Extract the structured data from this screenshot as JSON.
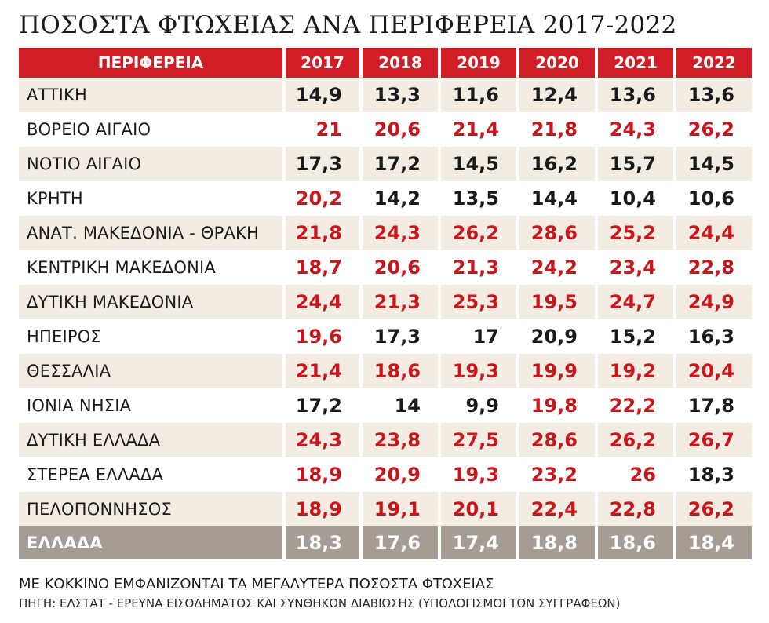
{
  "title": "ΠΟΣΟΣΤΑ ΦΤΩΧΕΙΑΣ ΑΝΑ ΠΕΡΙΦΕΡΕΙΑ 2017-2022",
  "colors": {
    "header_bg": "#d11e26",
    "highlight_red": "#c8161d",
    "normal_text": "#1a1a1a",
    "odd_row_bg": "#f3ece3",
    "total_row_bg": "#a59c94"
  },
  "chart_data": {
    "type": "table",
    "title": "ΠΟΣΟΣΤΑ ΦΤΩΧΕΙΑΣ ΑΝΑ ΠΕΡΙΦΕΡΕΙΑ 2017-2022",
    "columns": [
      "ΠΕΡΙΦΕΡΕΙΑ",
      "2017",
      "2018",
      "2019",
      "2020",
      "2021",
      "2022"
    ],
    "rows": [
      {
        "region": "ΑΤΤΙΚΗ",
        "values": [
          "14,9",
          "13,3",
          "11,6",
          "12,4",
          "13,6",
          "13,6"
        ],
        "red": [
          false,
          false,
          false,
          false,
          false,
          false
        ]
      },
      {
        "region": "ΒΟΡΕΙΟ ΑΙΓΑΙΟ",
        "values": [
          "21",
          "20,6",
          "21,4",
          "21,8",
          "24,3",
          "26,2"
        ],
        "red": [
          true,
          true,
          true,
          true,
          true,
          true
        ]
      },
      {
        "region": "ΝΟΤΙΟ ΑΙΓΑΙΟ",
        "values": [
          "17,3",
          "17,2",
          "14,5",
          "16,2",
          "15,7",
          "14,5"
        ],
        "red": [
          false,
          false,
          false,
          false,
          false,
          false
        ]
      },
      {
        "region": "ΚΡΗΤΗ",
        "values": [
          "20,2",
          "14,2",
          "13,5",
          "14,4",
          "10,4",
          "10,6"
        ],
        "red": [
          true,
          false,
          false,
          false,
          false,
          false
        ]
      },
      {
        "region": "ΑΝΑΤ. ΜΑΚΕΔΟΝΙΑ - ΘΡΑΚΗ",
        "values": [
          "21,8",
          "24,3",
          "26,2",
          "28,6",
          "25,2",
          "24,4"
        ],
        "red": [
          true,
          true,
          true,
          true,
          true,
          true
        ]
      },
      {
        "region": "ΚΕΝΤΡΙΚΗ ΜΑΚΕΔΟΝΙΑ",
        "values": [
          "18,7",
          "20,6",
          "21,3",
          "24,2",
          "23,4",
          "22,8"
        ],
        "red": [
          true,
          true,
          true,
          true,
          true,
          true
        ]
      },
      {
        "region": "ΔΥΤΙΚΗ ΜΑΚΕΔΟΝΙΑ",
        "values": [
          "24,4",
          "21,3",
          "25,3",
          "19,5",
          "24,7",
          "24,9"
        ],
        "red": [
          true,
          true,
          true,
          true,
          true,
          true
        ]
      },
      {
        "region": "ΗΠΕΙΡΟΣ",
        "values": [
          "19,6",
          "17,3",
          "17",
          "20,9",
          "15,2",
          "16,3"
        ],
        "red": [
          true,
          false,
          false,
          false,
          false,
          false
        ]
      },
      {
        "region": "ΘΕΣΣΑΛΙΑ",
        "values": [
          "21,4",
          "18,6",
          "19,3",
          "19,9",
          "19,2",
          "20,4"
        ],
        "red": [
          true,
          true,
          true,
          true,
          true,
          true
        ]
      },
      {
        "region": "ΙΟΝΙΑ ΝΗΣΙΑ",
        "values": [
          "17,2",
          "14",
          "9,9",
          "19,8",
          "22,2",
          "17,8"
        ],
        "red": [
          false,
          false,
          false,
          true,
          true,
          false
        ]
      },
      {
        "region": "ΔΥΤΙΚΗ ΕΛΛΑΔΑ",
        "values": [
          "24,3",
          "23,8",
          "27,5",
          "28,6",
          "26,2",
          "26,7"
        ],
        "red": [
          true,
          true,
          true,
          true,
          true,
          true
        ]
      },
      {
        "region": "ΣΤΕΡΕΑ ΕΛΛΑΔΑ",
        "values": [
          "18,9",
          "20,9",
          "19,3",
          "23,2",
          "26",
          "18,3"
        ],
        "red": [
          true,
          true,
          true,
          true,
          true,
          false
        ]
      },
      {
        "region": "ΠΕΛΟΠΟΝΝΗΣΟΣ",
        "values": [
          "18,9",
          "19,1",
          "20,1",
          "22,4",
          "22,8",
          "26,2"
        ],
        "red": [
          true,
          true,
          true,
          true,
          true,
          true
        ]
      }
    ],
    "total": {
      "region": "ΕΛΛΑΔΑ",
      "values": [
        "18,3",
        "17,6",
        "17,4",
        "18,8",
        "18,6",
        "18,4"
      ]
    }
  },
  "legend_note": "ΜΕ ΚΟΚΚΙΝΟ ΕΜΦΑΝΙΖΟΝΤΑΙ ΤΑ ΜΕΓΑΛΥΤΕΡΑ ΠΟΣΟΣΤΑ ΦΤΩΧΕΙΑΣ",
  "source": "ΠΗΓΗ: ΕΛΣΤΑΤ - ΕΡΕΥΝΑ ΕΙΣΟΔΗΜΑΤΟΣ ΚΑΙ ΣΥΝΘΗΚΩΝ ΔΙΑΒΙΩΣΗΣ (ΥΠΟΛΟΓΙΣΜΟΙ ΤΩΝ ΣΥΓΓΡΑΦΕΩΝ)"
}
